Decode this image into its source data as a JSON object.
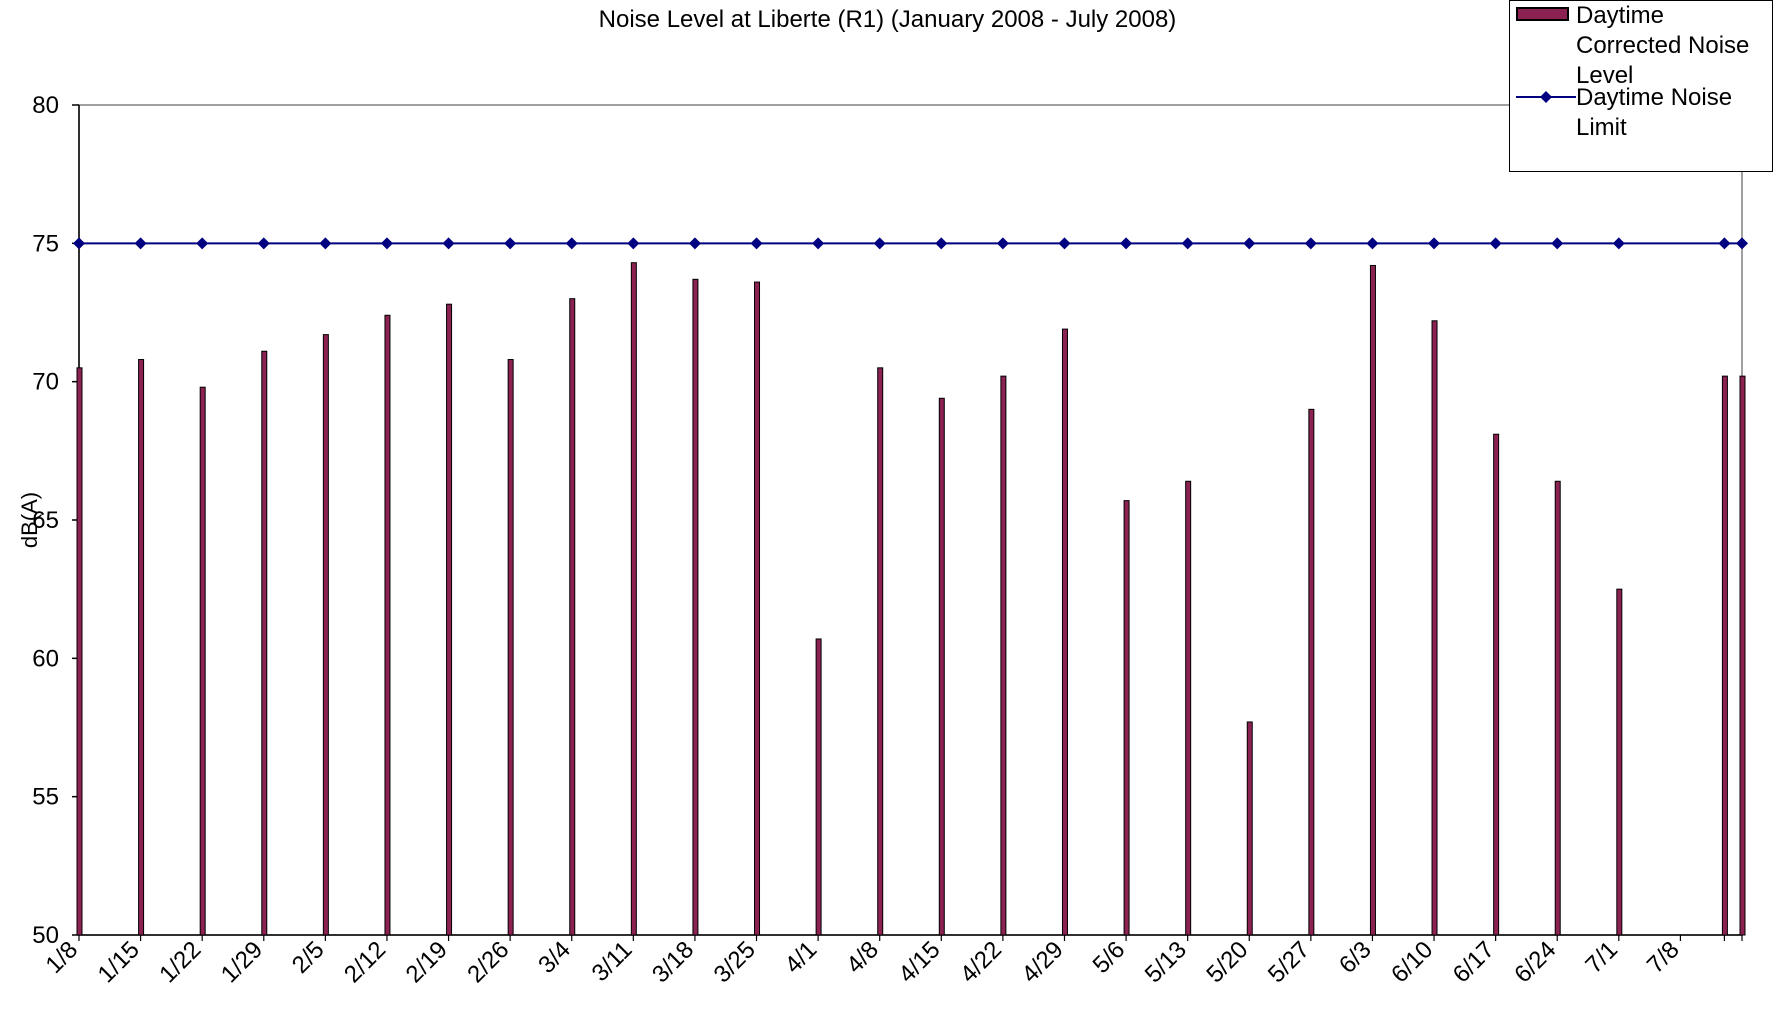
{
  "chart_data": {
    "type": "bar",
    "title": "Noise Level at Liberte (R1) (January 2008 - July 2008)",
    "xlabel": "",
    "ylabel": "dB(A)",
    "ylim": [
      50,
      80
    ],
    "yticks": [
      50,
      55,
      60,
      65,
      70,
      75,
      80
    ],
    "grid": false,
    "legend_position": "top-right",
    "x_tick_labels": [
      "1/8",
      "1/15",
      "1/22",
      "1/29",
      "2/5",
      "2/12",
      "2/19",
      "2/26",
      "3/4",
      "3/11",
      "3/18",
      "3/25",
      "4/1",
      "4/8",
      "4/15",
      "4/22",
      "4/29",
      "5/6",
      "5/13",
      "5/20",
      "5/27",
      "6/3",
      "6/10",
      "6/17",
      "6/24",
      "7/1",
      "7/8"
    ],
    "x_dates": [
      "1/8",
      "1/15",
      "1/22",
      "1/29",
      "2/5",
      "2/12",
      "2/19",
      "2/26",
      "3/4",
      "3/11",
      "3/18",
      "3/25",
      "4/1",
      "4/8",
      "4/15",
      "4/22",
      "4/29",
      "5/6",
      "5/13",
      "5/20",
      "5/27",
      "6/3",
      "6/10",
      "6/17",
      "6/24",
      "7/1",
      "7/8",
      "7/13",
      "7/15"
    ],
    "x_domain": [
      "1/8",
      "7/15"
    ],
    "series": [
      {
        "name": "Daytime Corrected Noise Level",
        "type": "bar",
        "color": "#8b2252",
        "points": [
          {
            "x": "1/8",
            "y": 70.5
          },
          {
            "x": "1/15",
            "y": 70.8
          },
          {
            "x": "1/22",
            "y": 69.8
          },
          {
            "x": "1/29",
            "y": 71.1
          },
          {
            "x": "2/5",
            "y": 71.7
          },
          {
            "x": "2/12",
            "y": 72.4
          },
          {
            "x": "2/19",
            "y": 72.8
          },
          {
            "x": "2/26",
            "y": 70.8
          },
          {
            "x": "3/4",
            "y": 73.0
          },
          {
            "x": "3/11",
            "y": 74.3
          },
          {
            "x": "3/18",
            "y": 73.7
          },
          {
            "x": "3/25",
            "y": 73.6
          },
          {
            "x": "4/1",
            "y": 60.7
          },
          {
            "x": "4/8",
            "y": 70.5
          },
          {
            "x": "4/15",
            "y": 69.4
          },
          {
            "x": "4/22",
            "y": 70.2
          },
          {
            "x": "4/29",
            "y": 71.9
          },
          {
            "x": "5/6",
            "y": 65.7
          },
          {
            "x": "5/13",
            "y": 66.4
          },
          {
            "x": "5/20",
            "y": 57.7
          },
          {
            "x": "5/27",
            "y": 69.0
          },
          {
            "x": "6/3",
            "y": 74.2
          },
          {
            "x": "6/10",
            "y": 72.2
          },
          {
            "x": "6/17",
            "y": 68.1
          },
          {
            "x": "6/24",
            "y": 66.4
          },
          {
            "x": "7/1",
            "y": 62.5
          },
          {
            "x": "7/13",
            "y": 70.2
          },
          {
            "x": "7/15",
            "y": 70.2
          }
        ]
      },
      {
        "name": "Daytime Noise Limit",
        "type": "line",
        "color": "#000080",
        "marker": "diamond",
        "points": [
          {
            "x": "1/8",
            "y": 75
          },
          {
            "x": "1/15",
            "y": 75
          },
          {
            "x": "1/22",
            "y": 75
          },
          {
            "x": "1/29",
            "y": 75
          },
          {
            "x": "2/5",
            "y": 75
          },
          {
            "x": "2/12",
            "y": 75
          },
          {
            "x": "2/19",
            "y": 75
          },
          {
            "x": "2/26",
            "y": 75
          },
          {
            "x": "3/4",
            "y": 75
          },
          {
            "x": "3/11",
            "y": 75
          },
          {
            "x": "3/18",
            "y": 75
          },
          {
            "x": "3/25",
            "y": 75
          },
          {
            "x": "4/1",
            "y": 75
          },
          {
            "x": "4/8",
            "y": 75
          },
          {
            "x": "4/15",
            "y": 75
          },
          {
            "x": "4/22",
            "y": 75
          },
          {
            "x": "4/29",
            "y": 75
          },
          {
            "x": "5/6",
            "y": 75
          },
          {
            "x": "5/13",
            "y": 75
          },
          {
            "x": "5/20",
            "y": 75
          },
          {
            "x": "5/27",
            "y": 75
          },
          {
            "x": "6/3",
            "y": 75
          },
          {
            "x": "6/10",
            "y": 75
          },
          {
            "x": "6/17",
            "y": 75
          },
          {
            "x": "6/24",
            "y": 75
          },
          {
            "x": "7/1",
            "y": 75
          },
          {
            "x": "7/13",
            "y": 75
          },
          {
            "x": "7/15",
            "y": 75
          }
        ]
      }
    ]
  },
  "legend": {
    "items": [
      {
        "label": "Daytime Corrected Noise Level"
      },
      {
        "label": "Daytime Noise Limit"
      }
    ]
  }
}
